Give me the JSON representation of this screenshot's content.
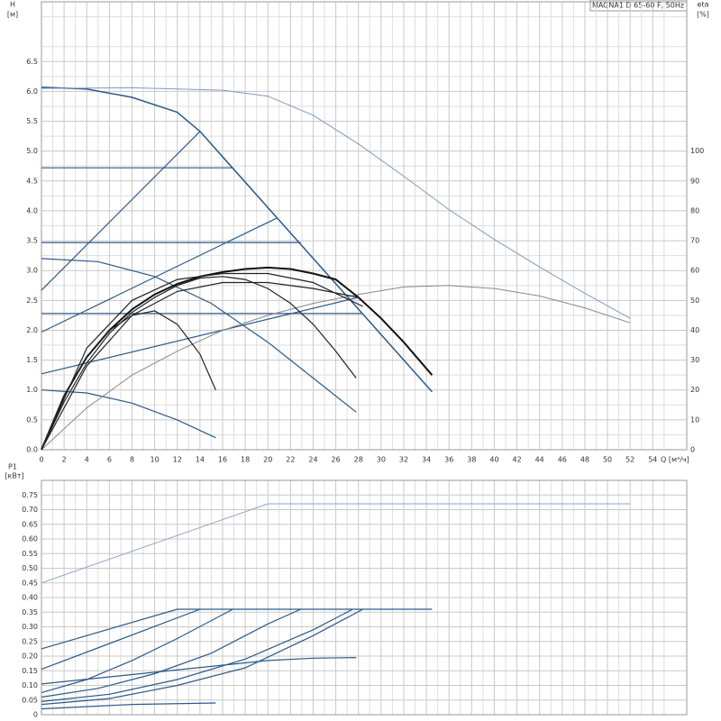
{
  "chart_data": [
    {
      "type": "line",
      "title": "MAGNA1 D 65-60 F, 50Hz",
      "y_label": "H",
      "y_unit": "[м]",
      "y2_label": "eta",
      "y2_unit": "[%]",
      "x_label": "Q [м³/ч]",
      "xlim": [
        0,
        57
      ],
      "ylim": [
        0,
        7.5
      ],
      "y2lim": [
        0,
        150
      ],
      "grid": true,
      "xticks": [
        0,
        2,
        4,
        6,
        8,
        10,
        12,
        14,
        16,
        18,
        20,
        22,
        24,
        26,
        28,
        30,
        32,
        34,
        36,
        38,
        40,
        42,
        44,
        46,
        48,
        50,
        52,
        54
      ],
      "yticks": [
        {
          "value": 0,
          "label": "0.0"
        },
        {
          "value": 0.5,
          "label": "0.5"
        },
        {
          "value": 1,
          "label": "1.0"
        },
        {
          "value": 1.5,
          "label": "1.5"
        },
        {
          "value": 2,
          "label": "2.0"
        },
        {
          "value": 2.5,
          "label": "2.5"
        },
        {
          "value": 3,
          "label": "3.0"
        },
        {
          "value": 3.5,
          "label": "3.5"
        },
        {
          "value": 4,
          "label": "4.0"
        },
        {
          "value": 4.5,
          "label": "4.5"
        },
        {
          "value": 5,
          "label": "5.0"
        },
        {
          "value": 5.5,
          "label": "5.5"
        },
        {
          "value": 6,
          "label": "6.0"
        },
        {
          "value": 6.5,
          "label": "6.5"
        }
      ],
      "y2ticks": [
        0,
        10,
        20,
        30,
        40,
        50,
        60,
        70,
        80,
        90,
        100
      ],
      "series": [
        {
          "color": "#2a5a8a",
          "line_width": 1.5,
          "x": [
            0,
            4,
            8,
            12,
            14,
            34.5
          ],
          "values": [
            6.07,
            6.04,
            5.9,
            5.65,
            5.33,
            0.97
          ]
        },
        {
          "color": "#7f9bbd",
          "line_width": 1,
          "x": [
            0,
            8,
            16,
            20,
            24,
            28,
            32,
            36,
            40,
            44,
            48,
            52
          ],
          "values": [
            6.05,
            6.06,
            6.02,
            5.92,
            5.6,
            5.12,
            4.58,
            4.02,
            3.52,
            3.06,
            2.62,
            2.2
          ]
        },
        {
          "color": "#2a5a8a",
          "line_width": 1.2,
          "x": [
            0,
            14
          ],
          "values": [
            2.67,
            5.33
          ]
        },
        {
          "color": "#2a5a8a",
          "line_width": 1.2,
          "x": [
            0,
            20.8
          ],
          "values": [
            1.97,
            3.88
          ]
        },
        {
          "color": "#2a5a8a",
          "line_width": 1.2,
          "x": [
            0,
            28
          ],
          "values": [
            1.27,
            2.55
          ]
        },
        {
          "color": "#2a5a8a",
          "line_width": 1.2,
          "x": [
            0,
            16.9
          ],
          "values": [
            4.72,
            4.72
          ]
        },
        {
          "color": "#2a5a8a",
          "line_width": 1.2,
          "x": [
            0,
            22.9
          ],
          "values": [
            3.47,
            3.47
          ]
        },
        {
          "color": "#2a5a8a",
          "line_width": 1.2,
          "x": [
            0,
            28.4
          ],
          "values": [
            2.28,
            2.28
          ]
        },
        {
          "color": "#2a5a8a",
          "line_width": 1.2,
          "x": [
            0,
            5,
            10,
            15,
            20,
            25,
            27.8
          ],
          "values": [
            3.2,
            3.15,
            2.9,
            2.45,
            1.8,
            1.05,
            0.63
          ]
        },
        {
          "color": "#2a5a8a",
          "line_width": 1.2,
          "x": [
            0,
            4,
            8,
            12,
            15.4
          ],
          "values": [
            1.0,
            0.95,
            0.78,
            0.5,
            0.2
          ]
        },
        {
          "color": "#888888",
          "line_width": 1,
          "axis": "y2",
          "x": [
            0,
            4,
            8,
            12,
            16,
            20,
            24,
            28,
            32,
            36,
            40,
            44,
            48,
            52
          ],
          "values": [
            0,
            14,
            25,
            33,
            40,
            45,
            49,
            52,
            54.5,
            55,
            54,
            51.5,
            47.5,
            42.5
          ]
        },
        {
          "color": "#111111",
          "line_width": 2,
          "axis": "y2",
          "x": [
            0,
            2,
            4,
            6,
            8,
            10,
            12,
            14,
            16,
            18,
            20,
            22,
            24,
            26,
            28,
            30,
            32,
            34.5
          ],
          "values": [
            0,
            18,
            31,
            40,
            47,
            52,
            55.5,
            58,
            59.5,
            60.5,
            61,
            60.5,
            59,
            57,
            51,
            44,
            36,
            25
          ]
        },
        {
          "color": "#222222",
          "line_width": 1.2,
          "axis": "y2",
          "x": [
            0,
            2,
            4,
            6,
            8,
            10,
            12,
            14,
            15.4
          ],
          "values": [
            0,
            18,
            31,
            40,
            45,
            46.5,
            42,
            32,
            20
          ]
        },
        {
          "color": "#222222",
          "line_width": 1.2,
          "axis": "y2",
          "x": [
            0,
            2,
            4,
            6,
            8,
            10,
            12,
            14,
            16,
            18,
            20,
            22,
            24,
            26,
            27.8
          ],
          "values": [
            0,
            16,
            29,
            39,
            46,
            51,
            55,
            57.5,
            58,
            57,
            54,
            49,
            42,
            33,
            24
          ]
        },
        {
          "color": "#222222",
          "line_width": 1.2,
          "axis": "y2",
          "x": [
            0,
            4,
            8,
            12,
            16,
            20,
            24,
            28
          ],
          "values": [
            0,
            28,
            45,
            53,
            56,
            56,
            54,
            51
          ]
        },
        {
          "color": "#222222",
          "line_width": 1.2,
          "axis": "y2",
          "x": [
            0,
            4,
            8,
            12,
            16,
            20,
            24,
            28.4
          ],
          "values": [
            0,
            34,
            50,
            57,
            59,
            59,
            56,
            48
          ]
        }
      ]
    },
    {
      "type": "line",
      "y_label": "P1",
      "y_unit": "[кВт]",
      "xlim": [
        0,
        57
      ],
      "ylim": [
        0,
        0.8
      ],
      "grid": true,
      "yticks": [
        0,
        0.05,
        {
          "value": 0.1,
          "label": "0.10"
        },
        0.15,
        {
          "value": 0.2,
          "label": "0.20"
        },
        0.25,
        {
          "value": 0.3,
          "label": "0.30"
        },
        0.35,
        {
          "value": 0.4,
          "label": "0.40"
        },
        0.45,
        {
          "value": 0.5,
          "label": "0.50"
        },
        0.55,
        {
          "value": 0.6,
          "label": "0.60"
        },
        0.65,
        {
          "value": 0.7,
          "label": "0.70"
        },
        0.75
      ],
      "series": [
        {
          "color": "#8aa4c4",
          "line_width": 1,
          "x": [
            0,
            20,
            52
          ],
          "values": [
            0.45,
            0.72,
            0.72
          ]
        },
        {
          "color": "#2a5a8a",
          "line_width": 1.2,
          "x": [
            0,
            12,
            34.5
          ],
          "values": [
            0.225,
            0.36,
            0.36
          ]
        },
        {
          "color": "#2a5a8a",
          "line_width": 1.2,
          "x": [
            0,
            14
          ],
          "values": [
            0.155,
            0.36
          ]
        },
        {
          "color": "#2a5a8a",
          "line_width": 1.2,
          "x": [
            0,
            4,
            8,
            12,
            16.9
          ],
          "values": [
            0.075,
            0.12,
            0.185,
            0.26,
            0.36
          ]
        },
        {
          "color": "#2a5a8a",
          "line_width": 1.2,
          "x": [
            0,
            5,
            10,
            15,
            20,
            22.9
          ],
          "values": [
            0.06,
            0.09,
            0.14,
            0.21,
            0.31,
            0.36
          ]
        },
        {
          "color": "#2a5a8a",
          "line_width": 1.2,
          "x": [
            0,
            6,
            12,
            18,
            24,
            27.5
          ],
          "values": [
            0.045,
            0.07,
            0.12,
            0.19,
            0.29,
            0.36
          ]
        },
        {
          "color": "#2a5a8a",
          "line_width": 1.2,
          "x": [
            0,
            6,
            12,
            18,
            24,
            28.4
          ],
          "values": [
            0.035,
            0.055,
            0.1,
            0.16,
            0.27,
            0.36
          ]
        },
        {
          "color": "#2a5a8a",
          "line_width": 1.2,
          "x": [
            0,
            10,
            20,
            24,
            27.8
          ],
          "values": [
            0.105,
            0.145,
            0.185,
            0.193,
            0.195
          ]
        },
        {
          "color": "#2a5a8a",
          "line_width": 1.2,
          "x": [
            0,
            8,
            15.4
          ],
          "values": [
            0.02,
            0.035,
            0.04
          ]
        }
      ]
    }
  ]
}
